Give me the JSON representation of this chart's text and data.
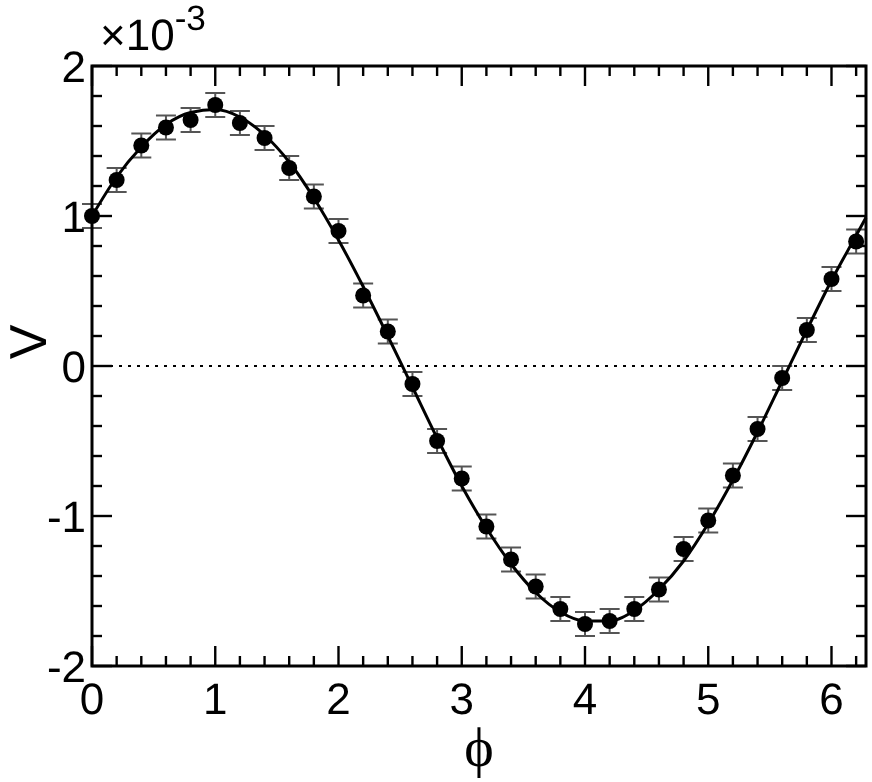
{
  "chart_data": {
    "type": "scatter",
    "xlabel": "ϕ",
    "ylabel": "V",
    "annotations": [
      "×10$^{-3}$"
    ],
    "xlim": [
      0,
      6.28
    ],
    "ylim": [
      -2,
      2
    ],
    "xticks": [
      0,
      {
        "value": 0.2,
        "label": null
      },
      {
        "value": 0.4,
        "label": null
      },
      {
        "value": 0.6,
        "label": null
      },
      {
        "value": 0.8,
        "label": null
      },
      1,
      {
        "value": 1.2,
        "label": null
      },
      {
        "value": 1.4,
        "label": null
      },
      {
        "value": 1.6,
        "label": null
      },
      {
        "value": 1.8,
        "label": null
      },
      2,
      {
        "value": 2.2,
        "label": null
      },
      {
        "value": 2.4,
        "label": null
      },
      {
        "value": 2.6,
        "label": null
      },
      {
        "value": 2.8,
        "label": null
      },
      3,
      {
        "value": 3.2,
        "label": null
      },
      {
        "value": 3.4,
        "label": null
      },
      {
        "value": 3.6,
        "label": null
      },
      {
        "value": 3.8,
        "label": null
      },
      4,
      {
        "value": 4.2,
        "label": null
      },
      {
        "value": 4.4,
        "label": null
      },
      {
        "value": 4.6,
        "label": null
      },
      {
        "value": 4.8,
        "label": null
      },
      5,
      {
        "value": 5.2,
        "label": null
      },
      {
        "value": 5.4,
        "label": null
      },
      {
        "value": 5.6,
        "label": null
      },
      {
        "value": 5.8,
        "label": null
      },
      6,
      {
        "value": 6.2,
        "label": null
      }
    ],
    "yticks": [
      -2,
      {
        "value": -1.8,
        "label": null
      },
      {
        "value": -1.6,
        "label": null
      },
      {
        "value": -1.4,
        "label": null
      },
      {
        "value": -1.2,
        "label": null
      },
      -1,
      {
        "value": -0.8,
        "label": null
      },
      {
        "value": -0.6,
        "label": null
      },
      {
        "value": -0.4,
        "label": null
      },
      {
        "value": -0.2,
        "label": null
      },
      0,
      {
        "value": 0.2,
        "label": null
      },
      {
        "value": 0.4,
        "label": null
      },
      {
        "value": 0.6,
        "label": null
      },
      {
        "value": 0.8,
        "label": null
      },
      1,
      {
        "value": 1.2,
        "label": null
      },
      {
        "value": 1.4,
        "label": null
      },
      {
        "value": 1.6,
        "label": null
      },
      {
        "value": 1.8,
        "label": null
      },
      2
    ],
    "grid": false,
    "marker": "circle",
    "ref_lines": [
      {
        "axis": "y",
        "value": 0,
        "line_style": "dotted",
        "color": "#000000"
      }
    ],
    "series": [
      {
        "color": "#000000",
        "x": [
          0,
          0.2,
          0.4,
          0.6,
          0.8,
          1.0,
          1.2,
          1.4,
          1.6,
          1.8,
          2.0,
          2.2,
          2.4,
          2.6,
          2.8,
          3.0,
          3.2,
          3.4,
          3.6,
          3.8,
          4.0,
          4.2,
          4.4,
          4.6,
          4.8,
          5.0,
          5.2,
          5.4,
          5.6,
          5.8,
          6.0,
          6.2
        ],
        "values": [
          1.0,
          1.24,
          1.47,
          1.59,
          1.64,
          1.74,
          1.62,
          1.52,
          1.32,
          1.13,
          0.9,
          0.47,
          0.23,
          -0.12,
          -0.5,
          -0.75,
          -1.07,
          -1.29,
          -1.47,
          -1.62,
          -1.72,
          -1.7,
          -1.62,
          -1.49,
          -1.22,
          -1.03,
          -0.73,
          -0.42,
          -0.08,
          0.24,
          0.58,
          0.83
        ],
        "errors": [
          0.08,
          0.08,
          0.08,
          0.08,
          0.08,
          0.08,
          0.08,
          0.08,
          0.08,
          0.08,
          0.08,
          0.08,
          0.08,
          0.08,
          0.08,
          0.08,
          0.08,
          0.08,
          0.08,
          0.08,
          0.08,
          0.08,
          0.08,
          0.08,
          0.08,
          0.08,
          0.08,
          0.08,
          0.08,
          0.08,
          0.08,
          0.08
        ]
      },
      {
        "type": "line",
        "color": "#000000",
        "line_style": "solid",
        "marker": "none",
        "x": [
          0,
          0.2,
          0.4,
          0.6,
          0.8,
          1.0,
          1.2,
          1.4,
          1.6,
          1.8,
          2.0,
          2.2,
          2.4,
          2.6,
          2.8,
          3.0,
          3.2,
          3.4,
          3.6,
          3.8,
          4.0,
          4.2,
          4.4,
          4.6,
          4.8,
          5.0,
          5.2,
          5.4,
          5.6,
          5.8,
          6.0,
          6.2,
          6.28
        ],
        "values": [
          1.0,
          1.26,
          1.46,
          1.61,
          1.69,
          1.71,
          1.66,
          1.54,
          1.36,
          1.12,
          0.84,
          0.53,
          0.2,
          -0.14,
          -0.48,
          -0.8,
          -1.08,
          -1.32,
          -1.51,
          -1.64,
          -1.7,
          -1.7,
          -1.63,
          -1.49,
          -1.3,
          -1.05,
          -0.76,
          -0.44,
          -0.1,
          0.24,
          0.57,
          0.87,
          0.99
        ]
      }
    ]
  }
}
